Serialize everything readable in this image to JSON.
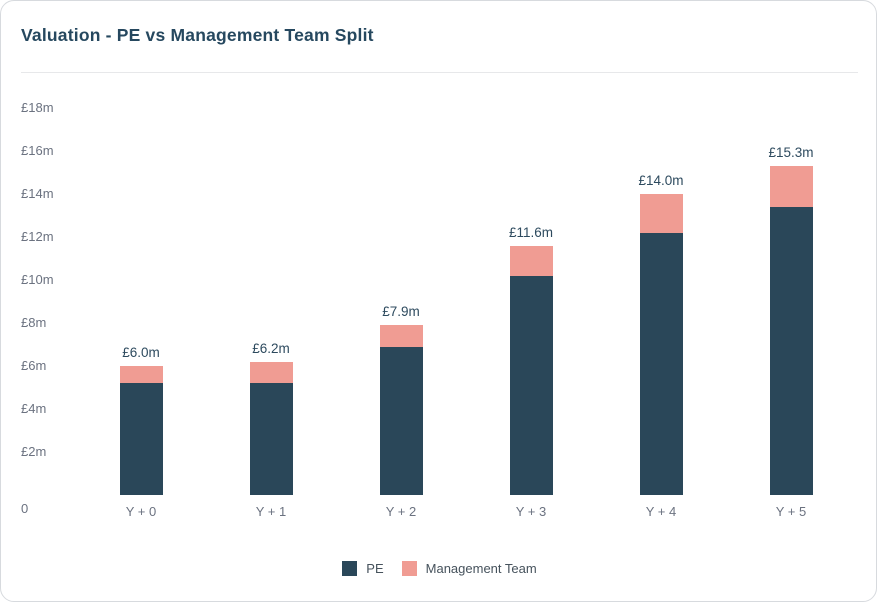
{
  "card": {
    "title": "Valuation - PE vs Management Team Split"
  },
  "colors": {
    "pe": "#2A4759",
    "management": "#F09C93",
    "title_text": "#26485F",
    "axis_text": "#6B7280",
    "value_label_text": "#2D4A5E",
    "legend_text": "#46525C",
    "divider": "#E7E8EA",
    "card_border": "#D7DADE",
    "card_bg": "#FFFFFF"
  },
  "chart_data": {
    "type": "bar",
    "stacked": true,
    "title": "Valuation - PE vs Management Team Split",
    "categories": [
      "Y + 0",
      "Y + 1",
      "Y + 2",
      "Y + 3",
      "Y + 4",
      "Y + 5"
    ],
    "series": [
      {
        "name": "PE",
        "color_key": "pe",
        "values": [
          5.2,
          5.2,
          6.9,
          10.2,
          12.2,
          13.4
        ]
      },
      {
        "name": "Management Team",
        "color_key": "management",
        "values": [
          0.8,
          1.0,
          1.0,
          1.4,
          1.8,
          1.9
        ]
      }
    ],
    "totals": [
      6.0,
      6.2,
      7.9,
      11.6,
      14.0,
      15.3
    ],
    "total_labels": [
      "£6.0m",
      "£6.2m",
      "£7.9m",
      "£11.6m",
      "£14.0m",
      "£15.3m"
    ],
    "xlabel": "",
    "ylabel": "",
    "ylim": [
      0,
      18
    ],
    "yaxis": {
      "unit": "£m",
      "ticks": [
        {
          "value": 18,
          "label": "£18m"
        },
        {
          "value": 16,
          "label": "£16m"
        },
        {
          "value": 14,
          "label": "£14m"
        },
        {
          "value": 12,
          "label": "£12m"
        },
        {
          "value": 10,
          "label": "£10m"
        },
        {
          "value": 8,
          "label": "£8m"
        },
        {
          "value": 6,
          "label": "£6m"
        },
        {
          "value": 4,
          "label": "£4m"
        },
        {
          "value": 2,
          "label": "£2m"
        },
        {
          "value": 0,
          "label": "0"
        }
      ]
    },
    "grid": false,
    "legend": {
      "position": "bottom",
      "entries": [
        "PE",
        "Management Team"
      ]
    }
  }
}
